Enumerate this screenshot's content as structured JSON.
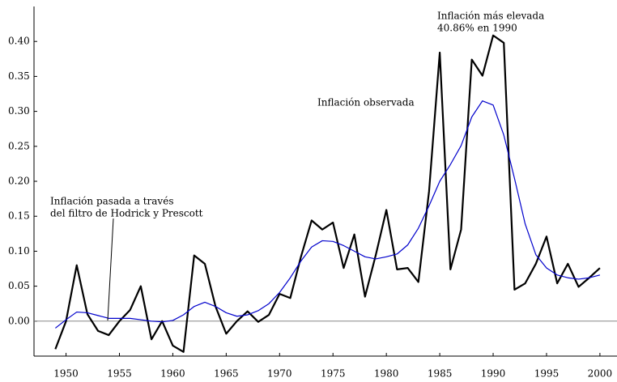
{
  "chart_data": {
    "type": "line",
    "annotations": [
      [
        "Inflación más elevada",
        "40.86% en 1990"
      ],
      [
        "Inflación observada"
      ],
      [
        "Inflación pasada a través",
        "del filtro de Hodrick y Prescott"
      ]
    ],
    "x": [
      1949,
      1950,
      1951,
      1952,
      1953,
      1954,
      1955,
      1956,
      1957,
      1958,
      1959,
      1960,
      1961,
      1962,
      1963,
      1964,
      1965,
      1966,
      1967,
      1968,
      1969,
      1970,
      1971,
      1972,
      1973,
      1974,
      1975,
      1976,
      1977,
      1978,
      1979,
      1980,
      1981,
      1982,
      1983,
      1984,
      1985,
      1986,
      1987,
      1988,
      1989,
      1990,
      1991,
      1992,
      1993,
      1994,
      1995,
      1996,
      1997,
      1998,
      1999,
      2000
    ],
    "series": [
      {
        "name": "Inflación observada",
        "color": "#000000",
        "width": 2.2,
        "values": [
          -0.04,
          0.0,
          0.08,
          0.01,
          -0.014,
          -0.02,
          0.0,
          0.016,
          0.05,
          -0.026,
          0.0,
          -0.035,
          -0.044,
          0.094,
          0.082,
          0.021,
          -0.018,
          0.0,
          0.014,
          -0.001,
          0.009,
          0.039,
          0.033,
          0.092,
          0.144,
          0.131,
          0.141,
          0.076,
          0.124,
          0.035,
          0.094,
          0.159,
          0.074,
          0.076,
          0.056,
          0.186,
          0.384,
          0.074,
          0.131,
          0.374,
          0.351,
          0.4086,
          0.398,
          0.045,
          0.054,
          0.082,
          0.121,
          0.054,
          0.082,
          0.049,
          0.062,
          0.076
        ]
      },
      {
        "name": "Inflación pasada a través del filtro de Hodrick y Prescott",
        "color": "#0000cc",
        "width": 1.2,
        "values": [
          -0.01,
          0.002,
          0.013,
          0.012,
          0.008,
          0.004,
          0.004,
          0.004,
          0.002,
          0.0,
          -0.001,
          0.001,
          0.009,
          0.021,
          0.027,
          0.021,
          0.012,
          0.007,
          0.009,
          0.015,
          0.025,
          0.041,
          0.062,
          0.086,
          0.106,
          0.115,
          0.114,
          0.108,
          0.1,
          0.092,
          0.089,
          0.092,
          0.096,
          0.109,
          0.133,
          0.165,
          0.2,
          0.224,
          0.251,
          0.292,
          0.315,
          0.309,
          0.266,
          0.204,
          0.139,
          0.095,
          0.076,
          0.066,
          0.062,
          0.06,
          0.062,
          0.066
        ]
      }
    ],
    "xlim": [
      1947,
      2001.6
    ],
    "ylim": [
      -0.05,
      0.45
    ],
    "xticks": [
      1950,
      1955,
      1960,
      1965,
      1970,
      1975,
      1980,
      1985,
      1990,
      1995,
      2000
    ],
    "yticks": [
      {
        "value": 0,
        "label": "0.00"
      },
      {
        "value": 0.05,
        "label": "0.05"
      },
      {
        "value": 0.1,
        "label": "0.10"
      },
      {
        "value": 0.15,
        "label": "0.15"
      },
      {
        "value": 0.2,
        "label": "0.20"
      },
      {
        "value": 0.25,
        "label": "0.25"
      },
      {
        "value": 0.3,
        "label": "0.30"
      },
      {
        "value": 0.35,
        "label": "0.35"
      },
      {
        "value": 0.4,
        "label": "0.40"
      }
    ]
  }
}
